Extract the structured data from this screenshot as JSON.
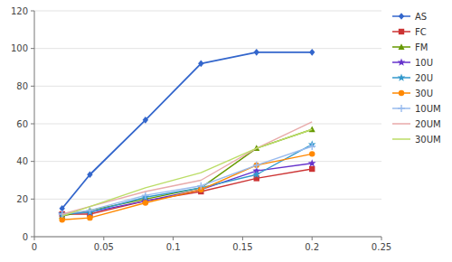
{
  "chart_data": {
    "type": "line",
    "x": [
      0.02,
      0.04,
      0.08,
      0.12,
      0.16,
      0.2
    ],
    "series": [
      {
        "name": "AS",
        "values": [
          15,
          33,
          62,
          92,
          98,
          98
        ],
        "color": "#3366CC",
        "marker": "diamond"
      },
      {
        "name": "FC",
        "values": [
          12,
          12,
          19,
          24,
          31,
          36
        ],
        "color": "#CC3333",
        "marker": "square"
      },
      {
        "name": "FM",
        "values": [
          11,
          14,
          20,
          26,
          47,
          57
        ],
        "color": "#669900",
        "marker": "triangle"
      },
      {
        "name": "10U",
        "values": [
          12,
          13,
          19,
          25,
          35,
          39
        ],
        "color": "#6633CC",
        "marker": "star"
      },
      {
        "name": "20U",
        "values": [
          12,
          13,
          21,
          26,
          33,
          49
        ],
        "color": "#3399CC",
        "marker": "star"
      },
      {
        "name": "30U",
        "values": [
          9,
          10,
          18,
          25,
          38,
          44
        ],
        "color": "#FF8800",
        "marker": "circle"
      },
      {
        "name": "10UM",
        "values": [
          12,
          14,
          22,
          27,
          38,
          48
        ],
        "color": "#99BBEE",
        "marker": "plus"
      },
      {
        "name": "20UM",
        "values": [
          12,
          16,
          24,
          30,
          47,
          61
        ],
        "color": "#E8AAAA",
        "marker": "none"
      },
      {
        "name": "30UM",
        "values": [
          11,
          16,
          26,
          34,
          47,
          57
        ],
        "color": "#BBDD66",
        "marker": "none"
      }
    ],
    "xlim": [
      0,
      0.25
    ],
    "ylim": [
      0,
      120
    ],
    "xticks": [
      0,
      0.05,
      0.1,
      0.15,
      0.2,
      0.25
    ],
    "yticks": [
      0,
      20,
      40,
      60,
      80,
      100,
      120
    ],
    "grid": true,
    "legend": "right"
  }
}
